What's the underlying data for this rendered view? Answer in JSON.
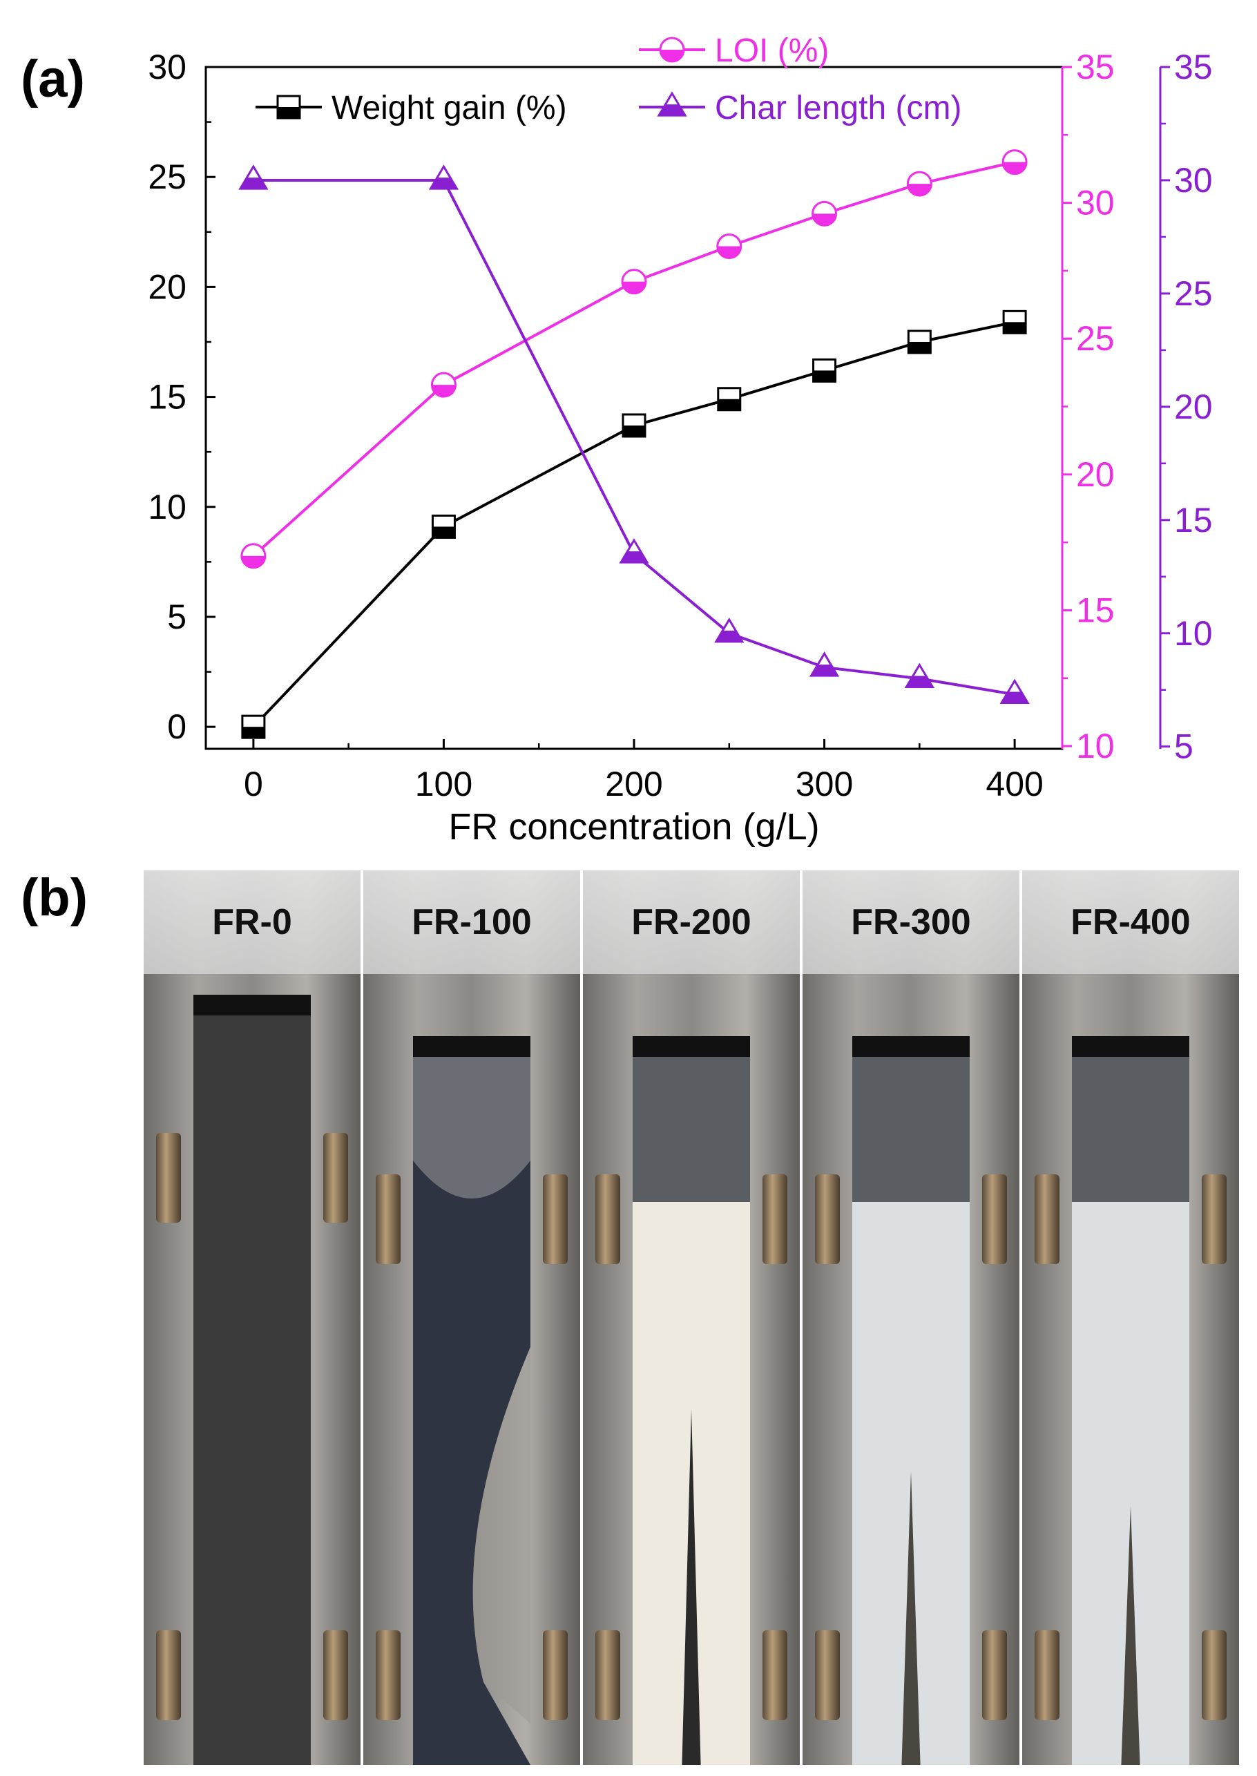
{
  "panel_a_label": "(a)",
  "panel_b_label": "(b)",
  "colors": {
    "weight": "#000000",
    "loi": "#ee2fe6",
    "char": "#8a1fd2",
    "axis": "#000000"
  },
  "chart_data": {
    "type": "line",
    "xlabel": "FR concentration (g/L)",
    "x": [
      0,
      100,
      200,
      250,
      300,
      350,
      400
    ],
    "x_ticks": [
      0,
      100,
      200,
      300,
      400
    ],
    "xlim": [
      -25,
      425
    ],
    "axes": {
      "left": {
        "ylim": [
          -1,
          30
        ],
        "ticks": [
          0,
          5,
          10,
          15,
          20,
          25,
          30
        ],
        "color": "#000000"
      },
      "right1": {
        "ylim": [
          9.9,
          35
        ],
        "ticks": [
          10,
          15,
          20,
          25,
          30,
          35
        ],
        "color": "#ee2fe6"
      },
      "right2": {
        "ylim": [
          4.9,
          35
        ],
        "ticks": [
          5,
          10,
          15,
          20,
          25,
          30,
          35
        ],
        "color": "#8a1fd2"
      }
    },
    "series": [
      {
        "name": "Weight gain (%)",
        "axis": "left",
        "marker": "square",
        "color": "#000000",
        "values": [
          0,
          9.1,
          13.7,
          14.9,
          16.2,
          17.5,
          18.4
        ]
      },
      {
        "name": "LOI (%)",
        "axis": "right1",
        "marker": "circle",
        "color": "#ee2fe6",
        "values": [
          17.0,
          23.3,
          27.1,
          28.4,
          29.6,
          30.7,
          31.5
        ]
      },
      {
        "name": "Char length (cm)",
        "axis": "right2",
        "marker": "triangle",
        "color": "#8a1fd2",
        "values": [
          30.0,
          30.0,
          13.5,
          10.0,
          8.5,
          8.0,
          7.3
        ]
      }
    ],
    "legend_placement": "top"
  },
  "photos": [
    {
      "label": "FR-0",
      "char_top_frac": 0.0,
      "char_bottom_frac": 1.0,
      "char_shape": "full"
    },
    {
      "label": "FR-100",
      "char_top_frac": 0.0,
      "char_bottom_frac": 1.0,
      "char_shape": "irregular"
    },
    {
      "label": "FR-200",
      "char_top_frac": 0.0,
      "char_bottom_frac": 0.9,
      "char_shape": "v"
    },
    {
      "label": "FR-300",
      "char_top_frac": 0.0,
      "char_bottom_frac": 0.9,
      "char_shape": "v"
    },
    {
      "label": "FR-400",
      "char_top_frac": 0.0,
      "char_bottom_frac": 0.9,
      "char_shape": "v"
    }
  ]
}
